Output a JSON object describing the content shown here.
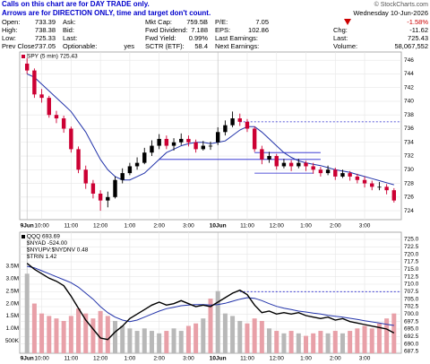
{
  "notice": [
    "Calls on this chart are for DAY TRADE only.",
    "Arrows are for DIRECTION ONLY, time and target don't count."
  ],
  "copyright": "© StockCharts.com",
  "quote": {
    "rows": [
      [
        [
          "Open:",
          "733.39"
        ],
        [
          "Ask:"
        ],
        [
          "Mkt Cap:",
          "759.5B"
        ],
        [
          "P/E:",
          "7.05"
        ]
      ],
      [
        [
          "High:",
          "738.38"
        ],
        [
          "Bid:"
        ],
        [
          "Fwd Dividend:",
          "7.188"
        ],
        [
          "EPS:",
          "102.86"
        ]
      ],
      [
        [
          "Low:",
          "725.33"
        ],
        [
          "Last:"
        ],
        [
          "Fwd Yield:",
          "0.99%"
        ],
        [
          "Last Earnings:"
        ]
      ],
      [
        [
          "Prev Close:",
          "737.05"
        ],
        [
          "Optionable:",
          "yes"
        ],
        [
          "SCTR (ETF):",
          "58.4"
        ],
        [
          "Next Earnings:"
        ]
      ]
    ],
    "date": "Wednesday 10-Jun-2026",
    "change_pct": "-1.58%",
    "side": [
      [
        "Chg:",
        "-11.62"
      ],
      [
        "Last:",
        "725.43"
      ],
      [
        "Volume:",
        "58,067,552"
      ]
    ]
  },
  "chart_data": [
    {
      "type": "candlestick",
      "legend": "SPY (5 min) 725.43",
      "up_color": "#000000",
      "down_color": "#cc0033",
      "open": [
        745.5,
        744.5,
        741,
        740.5,
        738,
        737.5,
        736,
        733,
        730,
        728,
        726.5,
        725.5,
        726,
        728.5,
        729.5,
        730.5,
        731,
        732.5,
        733.5,
        734.5,
        733.5,
        734,
        734.5,
        734,
        733,
        733.5,
        734,
        735.5,
        736.5,
        737.5,
        737,
        736,
        733,
        731.5,
        732,
        730.5,
        731,
        730.5,
        731,
        730.5,
        730,
        729.5,
        730,
        729,
        729.5,
        729,
        728.5,
        728,
        727.5,
        727.5,
        727
      ],
      "high": [
        746.3,
        744.8,
        741.8,
        740.8,
        738.6,
        737.9,
        736.3,
        733.4,
        730.6,
        728.5,
        727,
        726.8,
        729,
        730.2,
        731,
        731.8,
        733.2,
        734.3,
        735.2,
        735,
        734.6,
        735.3,
        735,
        734.4,
        734.2,
        734.1,
        736.2,
        737.2,
        738.5,
        738.2,
        737.4,
        736.3,
        733.5,
        732.6,
        732.3,
        731.6,
        731.4,
        731.6,
        731.3,
        731,
        730.4,
        730.6,
        730.3,
        730,
        729.8,
        729.4,
        729,
        728.4,
        728.2,
        727.9,
        727.3
      ],
      "low": [
        744,
        740.5,
        739.8,
        737.6,
        736.8,
        735.4,
        732.5,
        729.5,
        727.2,
        725.8,
        724,
        724.5,
        725.8,
        728,
        729.2,
        730,
        730.8,
        732,
        733,
        733,
        732.8,
        733.6,
        733.4,
        732.5,
        732.8,
        732.9,
        733.6,
        735,
        736.2,
        736.4,
        735.5,
        732.6,
        730.8,
        731,
        730,
        730.2,
        729.8,
        730.2,
        729.8,
        729.4,
        729,
        729.2,
        728.5,
        728.8,
        728.4,
        728,
        727.4,
        727,
        727,
        726.4,
        725.2
      ],
      "close": [
        744.5,
        741,
        740.5,
        738,
        737.5,
        736,
        733,
        730,
        728,
        726.5,
        725.5,
        726,
        728.5,
        729.5,
        730.5,
        731,
        732.5,
        733.5,
        734.5,
        733.5,
        734,
        734.5,
        734,
        733,
        733.5,
        733.5,
        735.5,
        736.5,
        737.5,
        737,
        736,
        733,
        731.5,
        732,
        730.5,
        731,
        730.5,
        731,
        730.5,
        730,
        729.5,
        730,
        729,
        729.5,
        729,
        728.5,
        728,
        727.5,
        727.5,
        727,
        725.5
      ],
      "ma": {
        "color": "#2233aa",
        "values": [
          744,
          743.5,
          742.5,
          741.5,
          740.5,
          739.5,
          738.5,
          737,
          735.5,
          733.5,
          731.5,
          730,
          729,
          728.5,
          728.5,
          729,
          729.5,
          730.5,
          731.5,
          732.5,
          733,
          733.5,
          733.8,
          734,
          734,
          733.8,
          734,
          734.2,
          735,
          735.8,
          736.3,
          736.3,
          735.5,
          734.5,
          733.5,
          732.5,
          731.8,
          731.3,
          731,
          730.8,
          730.6,
          730.3,
          730,
          729.8,
          729.6,
          729.3,
          729,
          728.7,
          728.4,
          728.1,
          727.8
        ]
      },
      "levels": [
        {
          "value": 737,
          "from": 29,
          "to": 51,
          "dashed": true,
          "color": "#2222cc"
        },
        {
          "value": 731.5,
          "from": 18,
          "to": 40,
          "dashed": false,
          "color": "#2222cc"
        },
        {
          "value": 732.5,
          "from": 31,
          "to": 40,
          "dashed": false,
          "color": "#2222cc"
        },
        {
          "value": 729.5,
          "from": 31,
          "to": 39,
          "dashed": false,
          "color": "#2222cc"
        }
      ],
      "xlim": [
        -1,
        51
      ],
      "ylim": [
        722.7,
        747.2
      ],
      "yticks": [
        724,
        726,
        728,
        730,
        732,
        734,
        736,
        738,
        740,
        742,
        744,
        746
      ],
      "xticks": [
        {
          "value": 0,
          "label": "9Jun"
        },
        {
          "value": 2,
          "label": "10:00"
        },
        {
          "value": 6,
          "label": "11:00"
        },
        {
          "value": 10,
          "label": "12:00"
        },
        {
          "value": 14,
          "label": "1:00"
        },
        {
          "value": 18,
          "label": "2:00"
        },
        {
          "value": 22,
          "label": "3:00"
        },
        {
          "value": 26,
          "label": "10Jun"
        },
        {
          "value": 30,
          "label": "11:00"
        },
        {
          "value": 34,
          "label": "12:00"
        },
        {
          "value": 38,
          "label": "1:00"
        },
        {
          "value": 42,
          "label": "2:00"
        },
        {
          "value": 46,
          "label": "3:00"
        }
      ],
      "grid": true
    },
    {
      "type": "line",
      "legend": [
        "QQQ 693.69",
        "$NYAD -524.00",
        "$NYUPV:$NYDNV 0.48",
        "$TRIN 1.42"
      ],
      "series": [
        {
          "name": "QQQ",
          "color": "#000000",
          "values": [
            717,
            715,
            713.5,
            712,
            711,
            709.5,
            706,
            702,
            698,
            695,
            692,
            691.5,
            694,
            696,
            698.5,
            700,
            701.5,
            703,
            704,
            703,
            703.5,
            704.5,
            703.5,
            702.5,
            703,
            702.5,
            704,
            705.5,
            707,
            708,
            706.5,
            703,
            700.5,
            701,
            700,
            700.5,
            700,
            700.5,
            699.5,
            699,
            698.5,
            699,
            698,
            698.5,
            697.5,
            697,
            696.5,
            696,
            695.5,
            695,
            693.69
          ]
        }
      ],
      "ma": {
        "color": "#2233aa",
        "values": [
          716,
          715.5,
          714.5,
          713.5,
          712.5,
          711.5,
          710.5,
          709,
          707,
          705,
          702.5,
          700.5,
          699,
          698,
          697.5,
          698,
          699,
          700,
          701,
          701.8,
          702.3,
          702.8,
          703,
          703.2,
          703.2,
          703,
          703.2,
          703.6,
          704.3,
          705,
          705.5,
          705.3,
          704.5,
          703.5,
          702.6,
          702,
          701.5,
          701,
          700.7,
          700.3,
          700,
          699.6,
          699.3,
          699,
          698.6,
          698.2,
          697.8,
          697.4,
          697,
          696.6,
          696.2
        ]
      },
      "volume": {
        "up_color": "#b8b8b8",
        "down_color": "#e8a0a8",
        "values": [
          3200000,
          2000000,
          1600000,
          1500000,
          1400000,
          1300000,
          1500000,
          1800000,
          1600000,
          1400000,
          1700000,
          1500000,
          1300000,
          1100000,
          1000000,
          900000,
          1000000,
          900000,
          800000,
          900000,
          1000000,
          900000,
          1100000,
          1200000,
          1400000,
          2200000,
          2500000,
          1600000,
          1500000,
          1300000,
          1200000,
          1400000,
          1300000,
          1000000,
          900000,
          800000,
          900000,
          800000,
          700000,
          800000,
          900000,
          800000,
          900000,
          800000,
          900000,
          1000000,
          1100000,
          1000000,
          1200000,
          1400000,
          1600000
        ]
      },
      "levels": [
        {
          "value": 707.5,
          "from": 29,
          "to": 51,
          "dashed": true,
          "color": "#2222cc"
        }
      ],
      "xlim": [
        -1,
        51
      ],
      "ylim": [
        686.9,
        727.4
      ],
      "yticks": [
        687.5,
        {
          "value": 690,
          "label": "690.0"
        },
        692.5,
        {
          "value": 695,
          "label": "695.0"
        },
        697.5,
        {
          "value": 700,
          "label": "700.0"
        },
        702.5,
        {
          "value": 705,
          "label": "705.0"
        },
        707.5,
        {
          "value": 710,
          "label": "710.0"
        },
        712.5,
        {
          "value": 715,
          "label": "715.0"
        },
        717.5,
        {
          "value": 720,
          "label": "720.0"
        },
        722.5,
        {
          "value": 725,
          "label": "725.0"
        }
      ],
      "y2lim": [
        0,
        4870000
      ],
      "y2ticks": [
        {
          "value": 500000,
          "label": "500K"
        },
        {
          "value": 1000000,
          "label": "1.0M"
        },
        {
          "value": 1500000,
          "label": "1.5M"
        },
        {
          "value": 2000000,
          "label": "2.0M"
        },
        {
          "value": 2500000,
          "label": "2.5M"
        },
        {
          "value": 3000000,
          "label": "3.0M"
        },
        {
          "value": 3500000,
          "label": "3.5M"
        }
      ],
      "xticks": [
        {
          "value": 0,
          "label": "9Jun"
        },
        {
          "value": 2,
          "label": "10:00"
        },
        {
          "value": 6,
          "label": "11:00"
        },
        {
          "value": 10,
          "label": "12:00"
        },
        {
          "value": 14,
          "label": "1:00"
        },
        {
          "value": 18,
          "label": "2:00"
        },
        {
          "value": 22,
          "label": "3:00"
        },
        {
          "value": 26,
          "label": "10Jun"
        },
        {
          "value": 30,
          "label": "11:00"
        },
        {
          "value": 34,
          "label": "12:00"
        },
        {
          "value": 38,
          "label": "1:00"
        },
        {
          "value": 42,
          "label": "2:00"
        },
        {
          "value": 46,
          "label": "3:00"
        }
      ],
      "grid": true
    }
  ]
}
